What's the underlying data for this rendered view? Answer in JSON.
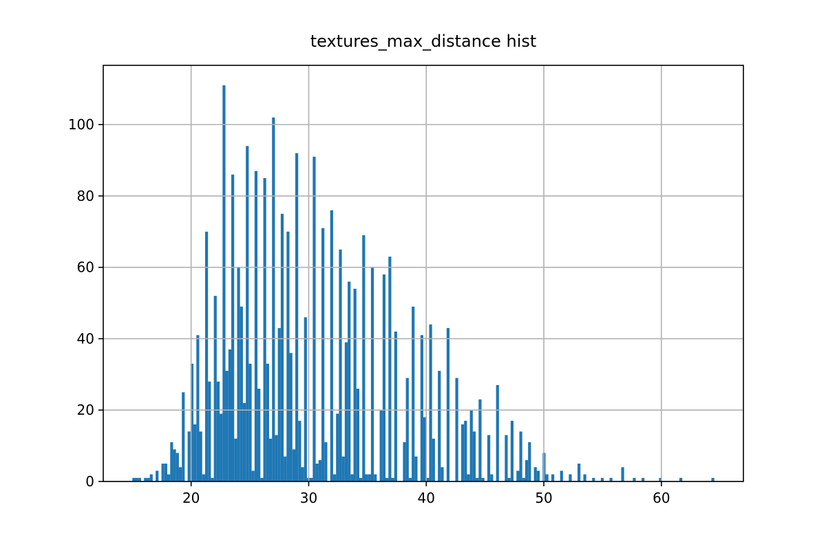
{
  "chart_data": {
    "type": "histogram",
    "title": "textures_max_distance hist",
    "color": "#1f77b4",
    "grid": true,
    "xlim": [
      12.525,
      66.975
    ],
    "ylim": [
      0,
      116.6
    ],
    "xticks": [
      20,
      30,
      40,
      50,
      60
    ],
    "yticks": [
      0,
      20,
      40,
      60,
      80,
      100
    ],
    "bins": [
      15,
      15.2475,
      15.495,
      15.7425,
      15.99,
      16.2375,
      16.485,
      16.7325,
      16.98,
      17.2275,
      17.475,
      17.7225,
      17.97,
      18.2175,
      18.465,
      18.7125,
      18.96,
      19.2075,
      19.455,
      19.7025,
      19.95,
      20.1975,
      20.445,
      20.6925,
      20.94,
      21.1875,
      21.435,
      21.6825,
      21.93,
      22.1775,
      22.425,
      22.6725,
      22.92,
      23.1675,
      23.415,
      23.6625,
      23.91,
      24.1575,
      24.405,
      24.6525,
      24.9,
      25.1475,
      25.395,
      25.6425,
      25.89,
      26.1375,
      26.385,
      26.6325,
      26.88,
      27.1275,
      27.375,
      27.6225,
      27.87,
      28.1175,
      28.365,
      28.6125,
      28.86,
      29.1075,
      29.355,
      29.6025,
      29.85,
      30.0975,
      30.345,
      30.5925,
      30.84,
      31.0875,
      31.335,
      31.5825,
      31.83,
      32.0775,
      32.325,
      32.5725,
      32.82,
      33.0675,
      33.315,
      33.5625,
      33.81,
      34.0575,
      34.305,
      34.5525,
      34.8,
      35.0475,
      35.295,
      35.5425,
      35.79,
      36.0375,
      36.285,
      36.5325,
      36.78,
      37.0275,
      37.275,
      37.5225,
      37.77,
      38.0175,
      38.265,
      38.5125,
      38.76,
      39.0075,
      39.255,
      39.5025,
      39.75,
      39.9975,
      40.245,
      40.4925,
      40.74,
      40.9875,
      41.235,
      41.4825,
      41.73,
      41.9775,
      42.225,
      42.4725,
      42.72,
      42.9675,
      43.215,
      43.4625,
      43.71,
      43.9575,
      44.205,
      44.4525,
      44.7,
      44.9475,
      45.195,
      45.4425,
      45.69,
      45.9375,
      46.185,
      46.4325,
      46.68,
      46.9275,
      47.175,
      47.4225,
      47.67,
      47.9175,
      48.165,
      48.4125,
      48.66,
      48.9075,
      49.155,
      49.4025,
      49.65,
      49.8975,
      50.145,
      50.3925,
      50.64,
      50.8875,
      51.135,
      51.3825,
      51.63,
      51.8775,
      52.125,
      52.3725,
      52.62,
      52.8675,
      53.115,
      53.3625,
      53.61,
      53.8575,
      54.105,
      54.3525,
      54.6,
      54.8475,
      55.095,
      55.3425,
      55.59,
      55.8375,
      56.085,
      56.3325,
      56.58,
      56.8275,
      57.075,
      57.3225,
      57.57,
      57.8175,
      58.065,
      58.3125,
      58.56,
      58.8075,
      59.055,
      59.3025,
      59.55,
      59.7975,
      60.045,
      60.2925,
      60.54,
      60.7875,
      61.035,
      61.2825,
      61.53,
      61.7775,
      62.025,
      62.2725,
      62.52,
      62.7675,
      63.015,
      63.2625,
      63.51,
      63.7575,
      64.005,
      64.2525,
      64.5
    ],
    "values": [
      1,
      1,
      1,
      0,
      1,
      1,
      2,
      0,
      3,
      0,
      5,
      5,
      2,
      11,
      9,
      8,
      4,
      25,
      0,
      14,
      33,
      16,
      41,
      14,
      2,
      70,
      28,
      1,
      52,
      28,
      19,
      111,
      31,
      37,
      86,
      12,
      60,
      49,
      22,
      94,
      33,
      3,
      87,
      26,
      1,
      85,
      33,
      12,
      102,
      13,
      43,
      75,
      7,
      70,
      36,
      9,
      92,
      17,
      4,
      46,
      1,
      1,
      91,
      5,
      6,
      71,
      11,
      0,
      76,
      2,
      19,
      65,
      7,
      39,
      56,
      2,
      54,
      26,
      1,
      69,
      2,
      2,
      60,
      2,
      0,
      20,
      58,
      1,
      63,
      1,
      42,
      0,
      0,
      11,
      29,
      1,
      49,
      7,
      0,
      41,
      18,
      1,
      44,
      12,
      0,
      31,
      4,
      0,
      43,
      0,
      0,
      29,
      0,
      16,
      17,
      2,
      20,
      14,
      1,
      23,
      1,
      0,
      13,
      2,
      0,
      27,
      0,
      0,
      13,
      1,
      17,
      0,
      3,
      14,
      1,
      6,
      11,
      0,
      4,
      3,
      0,
      8,
      2,
      0,
      2,
      0,
      0,
      3,
      0,
      0,
      2,
      0,
      0,
      5,
      0,
      2,
      0,
      0,
      1,
      0,
      0,
      1,
      0,
      0,
      1,
      0,
      0,
      0,
      4,
      0,
      0,
      0,
      1,
      0,
      0,
      1,
      0,
      0,
      0,
      0,
      0,
      1,
      0,
      0,
      0,
      0,
      0,
      0,
      1,
      0,
      0,
      0,
      0,
      0,
      0,
      0,
      0,
      0,
      0,
      1
    ]
  }
}
